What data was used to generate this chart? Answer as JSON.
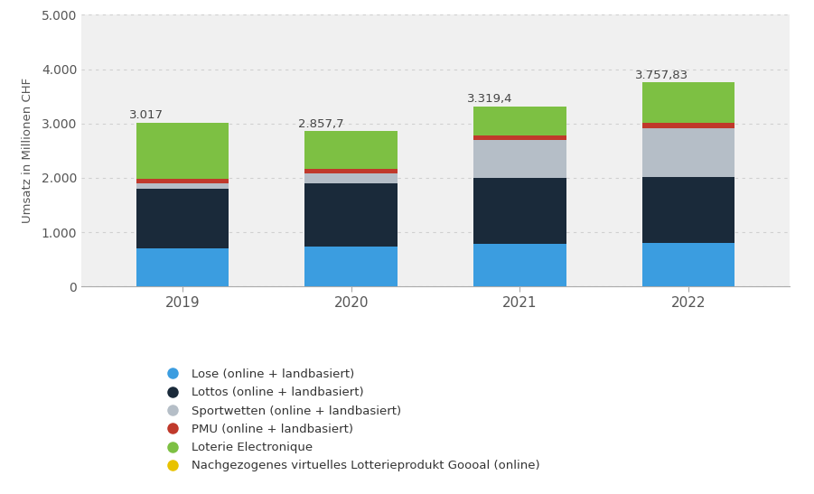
{
  "years": [
    "2019",
    "2020",
    "2021",
    "2022"
  ],
  "totals": [
    "3.017",
    "2.857,7",
    "3.319,4",
    "3.757,83"
  ],
  "segments": {
    "Lose (online + landbasiert)": {
      "values": [
        700,
        740,
        790,
        800
      ],
      "color": "#3b9de0"
    },
    "Lottos (online + landbasiert)": {
      "values": [
        1100,
        1155,
        1205,
        1215
      ],
      "color": "#1a2a3a"
    },
    "Sportwetten (online + landbasiert)": {
      "values": [
        100,
        195,
        700,
        905
      ],
      "color": "#b5bec7"
    },
    "PMU (online + landbasiert)": {
      "values": [
        80,
        83,
        84,
        88
      ],
      "color": "#c0392b"
    },
    "Loterie Electronique": {
      "values": [
        1037,
        685,
        540,
        750
      ],
      "color": "#7dc043"
    },
    "Nachgezogenes virtuelles Lotterieprodukt Goooal (online)": {
      "values": [
        0,
        0,
        0,
        0
      ],
      "color": "#e8c200"
    }
  },
  "ylabel": "Umsatz in Millionen CHF",
  "ylim": [
    0,
    5000
  ],
  "yticks": [
    0,
    1000,
    2000,
    3000,
    4000,
    5000
  ],
  "ytick_labels": [
    "0",
    "1.000",
    "2.000",
    "3.000",
    "4.000",
    "5.000"
  ],
  "background_color": "#ffffff",
  "plot_bg_color": "#f0f0f0",
  "bar_width": 0.55,
  "grid_color": "#d0d0d0"
}
